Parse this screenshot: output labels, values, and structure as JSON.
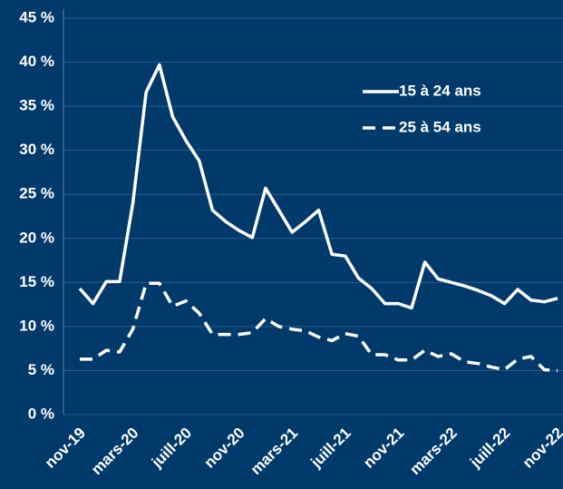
{
  "chart_data": {
    "type": "line",
    "categories": [
      "nov-19",
      null,
      null,
      null,
      "mars-20",
      null,
      null,
      null,
      "juill-20",
      null,
      null,
      null,
      "nov-20",
      null,
      null,
      null,
      "mars-21",
      null,
      null,
      null,
      "juill-21",
      null,
      null,
      null,
      "nov-21",
      null,
      null,
      null,
      "mars-22",
      null,
      null,
      null,
      "juill-22",
      null,
      null,
      null,
      "nov-22"
    ],
    "series": [
      {
        "name": "15 à 24 ans",
        "color": "#ffffff",
        "dash": false,
        "values": [
          14.3,
          12.6,
          15.1,
          15.1,
          24,
          36.6,
          39.7,
          33.8,
          31.1,
          28.8,
          23.2,
          21.9,
          20.9,
          20.1,
          25.7,
          23.2,
          20.7,
          21.9,
          23.2,
          18.2,
          18.0,
          15.5,
          14.3,
          12.6,
          12.6,
          12.1,
          17.3,
          15.4,
          15.0,
          14.6,
          14.1,
          13.5,
          12.6,
          14.2,
          13.0,
          12.8,
          13.2
        ]
      },
      {
        "name": "25 à 54 ans",
        "color": "#ffffff",
        "dash": true,
        "values": [
          6.3,
          6.3,
          7.3,
          7.1,
          9.7,
          14.9,
          14.9,
          12.3,
          12.9,
          11.5,
          9.1,
          9.1,
          9.1,
          9.3,
          10.9,
          10.0,
          9.7,
          9.5,
          8.8,
          8.4,
          9.2,
          8.9,
          6.8,
          6.8,
          6.2,
          6.2,
          7.3,
          6.6,
          6.9,
          6.0,
          5.8,
          5.4,
          5.1,
          6.3,
          6.6,
          5.1,
          5.0
        ]
      }
    ],
    "ylim": [
      0,
      45
    ],
    "yticks": [
      {
        "value": 0,
        "label": "0 %"
      },
      {
        "value": 5,
        "label": "5 %"
      },
      {
        "value": 10,
        "label": "10 %"
      },
      {
        "value": 15,
        "label": "15 %"
      },
      {
        "value": 20,
        "label": "20 %"
      },
      {
        "value": 25,
        "label": "25 %"
      },
      {
        "value": 30,
        "label": "30 %"
      },
      {
        "value": 35,
        "label": "35 %"
      },
      {
        "value": 40,
        "label": "40 %"
      },
      {
        "value": 45,
        "label": "45 %"
      }
    ],
    "grid": true,
    "legend": "top-right",
    "background": "#003a6b"
  }
}
